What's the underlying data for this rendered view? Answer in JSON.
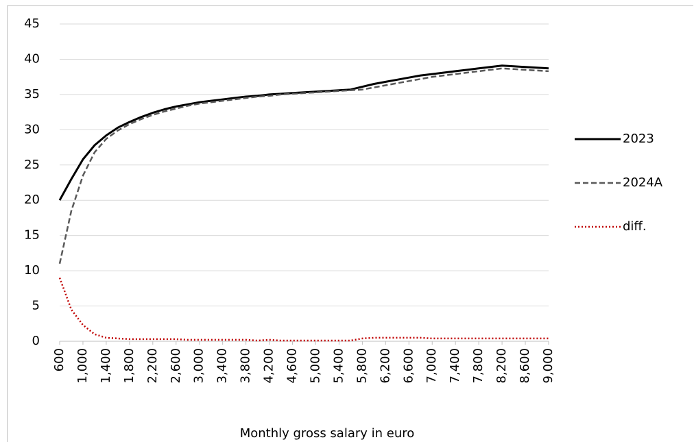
{
  "chart_data": {
    "type": "line",
    "x_label": "Monthly gross salary in euro",
    "x": [
      600,
      800,
      1000,
      1200,
      1400,
      1600,
      1800,
      2000,
      2200,
      2400,
      2600,
      2800,
      3000,
      3200,
      3400,
      3600,
      3800,
      4000,
      4200,
      4400,
      4600,
      4800,
      5000,
      5200,
      5400,
      5600,
      5800,
      6000,
      6200,
      6400,
      6600,
      6800,
      7000,
      7200,
      7400,
      7600,
      7800,
      8000,
      8200,
      8400,
      8600,
      8800,
      9000
    ],
    "series": [
      {
        "name": "2023",
        "color": "#000000",
        "dash": "solid",
        "values": [
          20,
          23,
          25.8,
          27.8,
          29.2,
          30.3,
          31.1,
          31.8,
          32.4,
          32.9,
          33.3,
          33.6,
          33.9,
          34.1,
          34.3,
          34.5,
          34.7,
          34.8,
          35.0,
          35.1,
          35.2,
          35.3,
          35.4,
          35.5,
          35.6,
          35.7,
          36.1,
          36.5,
          36.8,
          37.1,
          37.4,
          37.7,
          37.9,
          38.1,
          38.3,
          38.5,
          38.7,
          38.9,
          39.1,
          39.0,
          38.9,
          38.8,
          38.7
        ]
      },
      {
        "name": "2024A",
        "color": "#595959",
        "dash": "dashed",
        "values": [
          11,
          18.5,
          23.5,
          26.8,
          28.7,
          29.9,
          30.8,
          31.5,
          32.1,
          32.6,
          33.0,
          33.4,
          33.7,
          33.9,
          34.1,
          34.3,
          34.5,
          34.7,
          34.8,
          35.0,
          35.1,
          35.2,
          35.3,
          35.4,
          35.5,
          35.6,
          35.7,
          36.0,
          36.3,
          36.6,
          36.9,
          37.2,
          37.5,
          37.7,
          37.9,
          38.1,
          38.3,
          38.5,
          38.7,
          38.6,
          38.5,
          38.4,
          38.3
        ]
      },
      {
        "name": "diff.",
        "color": "#c00000",
        "dash": "dotted",
        "values": [
          9,
          4.5,
          2.3,
          1.0,
          0.5,
          0.4,
          0.3,
          0.3,
          0.3,
          0.3,
          0.3,
          0.2,
          0.2,
          0.2,
          0.2,
          0.2,
          0.2,
          0.1,
          0.2,
          0.1,
          0.1,
          0.1,
          0.1,
          0.1,
          0.1,
          0.1,
          0.4,
          0.5,
          0.5,
          0.5,
          0.5,
          0.5,
          0.4,
          0.4,
          0.4,
          0.4,
          0.4,
          0.4,
          0.4,
          0.4,
          0.4,
          0.4,
          0.4
        ]
      }
    ],
    "xlim": [
      600,
      9000
    ],
    "xticks": [
      600,
      {
        "value": 1000,
        "label": "1,000"
      },
      {
        "value": 1400,
        "label": "1,400"
      },
      {
        "value": 1800,
        "label": "1,800"
      },
      {
        "value": 2200,
        "label": "2,200"
      },
      {
        "value": 2600,
        "label": "2,600"
      },
      {
        "value": 3000,
        "label": "3,000"
      },
      {
        "value": 3400,
        "label": "3,400"
      },
      {
        "value": 3800,
        "label": "3,800"
      },
      {
        "value": 4200,
        "label": "4,200"
      },
      {
        "value": 4600,
        "label": "4,600"
      },
      {
        "value": 5000,
        "label": "5,000"
      },
      {
        "value": 5400,
        "label": "5,400"
      },
      {
        "value": 5800,
        "label": "5,800"
      },
      {
        "value": 6200,
        "label": "6,200"
      },
      {
        "value": 6600,
        "label": "6,600"
      },
      {
        "value": 7000,
        "label": "7,000"
      },
      {
        "value": 7400,
        "label": "7,400"
      },
      {
        "value": 7800,
        "label": "7,800"
      },
      {
        "value": 8200,
        "label": "8,200"
      },
      {
        "value": 8600,
        "label": "8,600"
      },
      {
        "value": 9000,
        "label": "9,000"
      }
    ],
    "ylim": [
      0,
      45
    ],
    "yticks": [
      0,
      5,
      10,
      15,
      20,
      25,
      30,
      35,
      40,
      45
    ],
    "grid": true,
    "legend": "right"
  }
}
